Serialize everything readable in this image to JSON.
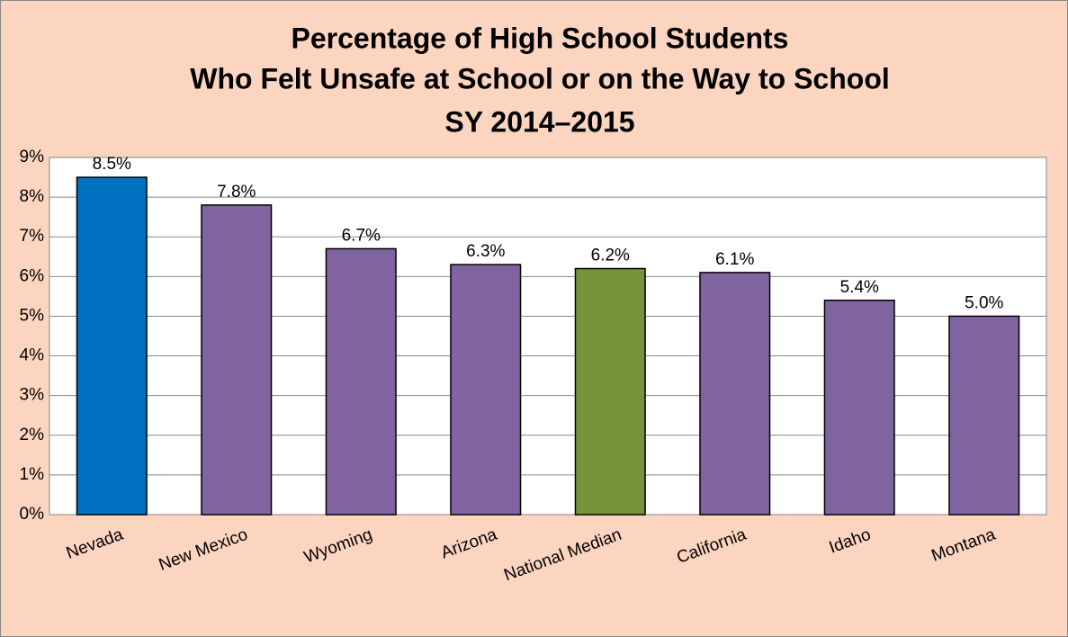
{
  "chart_data": {
    "type": "bar",
    "title": [
      "Percentage of High School Students",
      "Who Felt Unsafe at School or on the Way to School",
      "SY 2014–2015"
    ],
    "categories": [
      "Nevada",
      "New Mexico",
      "Wyoming",
      "Arizona",
      "National Median",
      "California",
      "Idaho",
      "Montana"
    ],
    "values": [
      8.5,
      7.8,
      6.7,
      6.3,
      6.2,
      6.1,
      5.4,
      5.0
    ],
    "value_labels": [
      "8.5%",
      "7.8%",
      "6.7%",
      "6.3%",
      "6.2%",
      "6.1%",
      "5.4%",
      "5.0%"
    ],
    "colors": [
      "#0070c0",
      "#8064a2",
      "#8064a2",
      "#8064a2",
      "#77933c",
      "#8064a2",
      "#8064a2",
      "#8064a2"
    ],
    "ylim": [
      0,
      9
    ],
    "yticks": [
      {
        "value": 0,
        "label": "0%"
      },
      {
        "value": 1,
        "label": "1%"
      },
      {
        "value": 2,
        "label": "2%"
      },
      {
        "value": 3,
        "label": "3%"
      },
      {
        "value": 4,
        "label": "4%"
      },
      {
        "value": 5,
        "label": "5%"
      },
      {
        "value": 6,
        "label": "6%"
      },
      {
        "value": 7,
        "label": "7%"
      },
      {
        "value": 8,
        "label": "8%"
      },
      {
        "value": 9,
        "label": "9%"
      }
    ],
    "grid": true
  }
}
